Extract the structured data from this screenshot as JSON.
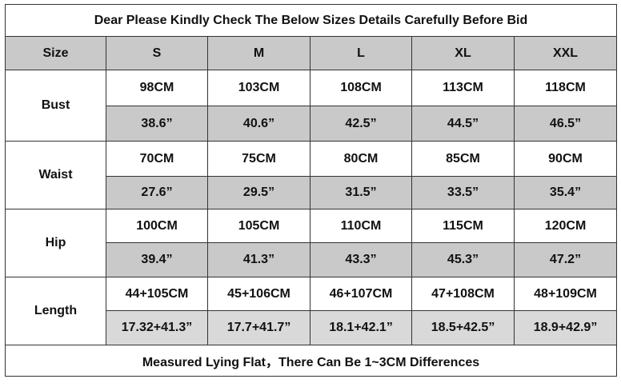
{
  "title": "Dear Please Kindly Check The Below Sizes Details Carefully Before Bid",
  "header": {
    "size_label": "Size",
    "sizes": [
      "S",
      "M",
      "L",
      "XL",
      "XXL"
    ]
  },
  "rows": [
    {
      "label": "Bust",
      "cm": [
        "98CM",
        "103CM",
        "108CM",
        "113CM",
        "118CM"
      ],
      "inch": [
        "38.6”",
        "40.6”",
        "42.5”",
        "44.5”",
        "46.5”"
      ]
    },
    {
      "label": "Waist",
      "cm": [
        "70CM",
        "75CM",
        "80CM",
        "85CM",
        "90CM"
      ],
      "inch": [
        "27.6”",
        "29.5”",
        "31.5”",
        "33.5”",
        "35.4”"
      ]
    },
    {
      "label": "Hip",
      "cm": [
        "100CM",
        "105CM",
        "110CM",
        "115CM",
        "120CM"
      ],
      "inch": [
        "39.4”",
        "41.3”",
        "43.3”",
        "45.3”",
        "47.2”"
      ]
    },
    {
      "label": "Length",
      "cm": [
        "44+105CM",
        "45+106CM",
        "46+107CM",
        "47+108CM",
        "48+109CM"
      ],
      "inch": [
        "17.32+41.3”",
        "17.7+41.7”",
        "18.1+42.1”",
        "18.5+42.5”",
        "18.9+42.9”"
      ]
    }
  ],
  "footer": "Measured Lying Flat，There Can Be 1~3CM Differences",
  "colors": {
    "header_fill": "#c9c9c9",
    "inch_row_fill": "#c9c9c9",
    "length_inch_fill": "#d9d9d9",
    "border": "#333333"
  }
}
